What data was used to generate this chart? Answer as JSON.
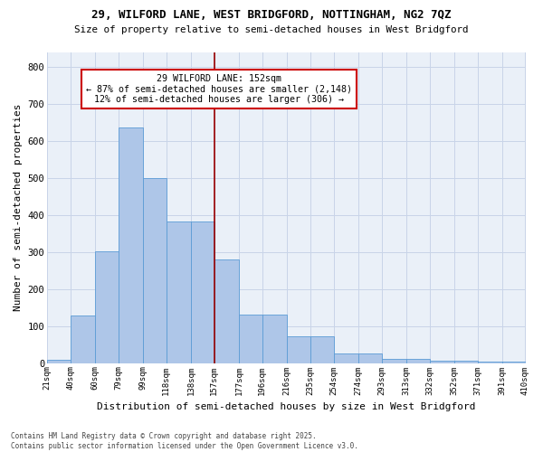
{
  "title1": "29, WILFORD LANE, WEST BRIDGFORD, NOTTINGHAM, NG2 7QZ",
  "title2": "Size of property relative to semi-detached houses in West Bridgford",
  "xlabel": "Distribution of semi-detached houses by size in West Bridgford",
  "ylabel": "Number of semi-detached properties",
  "bins": [
    21,
    40,
    60,
    79,
    99,
    118,
    138,
    157,
    177,
    196,
    216,
    235,
    254,
    274,
    293,
    313,
    332,
    352,
    371,
    391,
    410
  ],
  "counts": [
    8,
    128,
    302,
    636,
    500,
    383,
    383,
    280,
    130,
    130,
    72,
    72,
    25,
    25,
    12,
    12,
    7,
    7,
    5,
    5
  ],
  "bar_color": "#aec6e8",
  "bar_edge_color": "#5b9bd5",
  "grid_color": "#c8d4e8",
  "bg_color": "#eaf0f8",
  "vline_x": 157,
  "vline_color": "#990000",
  "annotation_text": "29 WILFORD LANE: 152sqm\n← 87% of semi-detached houses are smaller (2,148)\n12% of semi-detached houses are larger (306) →",
  "annotation_box_color": "#ffffff",
  "annotation_box_edge": "#cc0000",
  "footer": "Contains HM Land Registry data © Crown copyright and database right 2025.\nContains public sector information licensed under the Open Government Licence v3.0.",
  "ylim": [
    0,
    840
  ],
  "yticks": [
    0,
    100,
    200,
    300,
    400,
    500,
    600,
    700,
    800
  ],
  "tick_labels": [
    "21sqm",
    "40sqm",
    "60sqm",
    "79sqm",
    "99sqm",
    "118sqm",
    "138sqm",
    "157sqm",
    "177sqm",
    "196sqm",
    "216sqm",
    "235sqm",
    "254sqm",
    "274sqm",
    "293sqm",
    "313sqm",
    "332sqm",
    "352sqm",
    "371sqm",
    "391sqm",
    "410sqm"
  ]
}
